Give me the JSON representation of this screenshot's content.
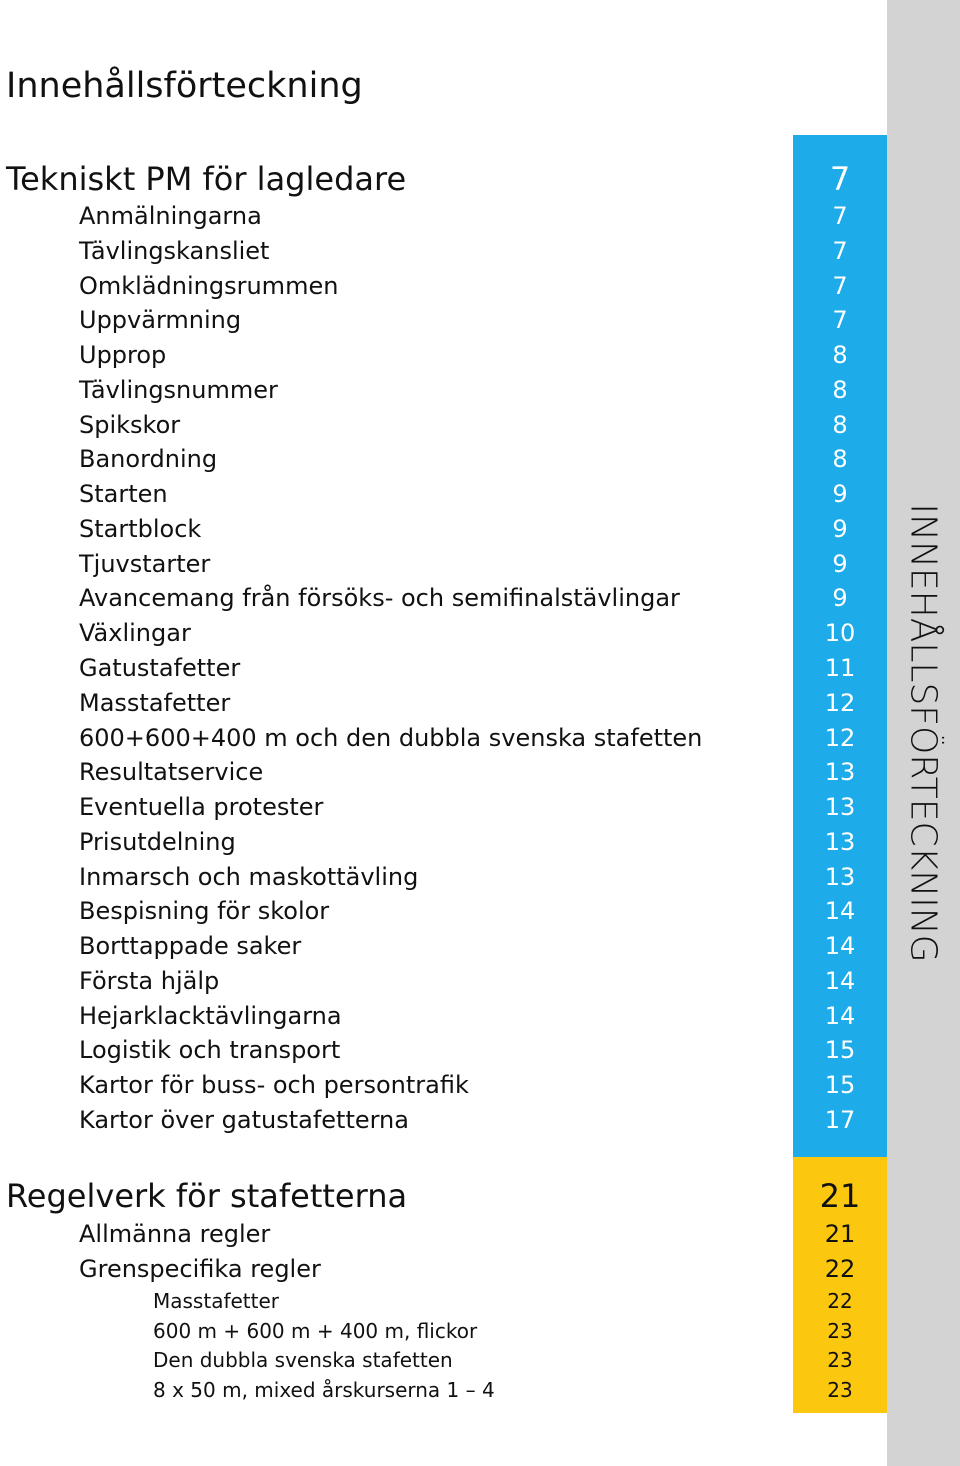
{
  "title": "Innehållsförteckning",
  "side_label": "INNEHÅLLSFÖRTECKNING",
  "colors": {
    "blue": "#1eabe9",
    "yellow": "#fbc70f",
    "strip": "#d3d3d3",
    "text": "#111111"
  },
  "sections": [
    {
      "title": "Tekniskt PM för lagledare",
      "page": "7",
      "items": [
        {
          "label": "Anmälningarna",
          "page": "7"
        },
        {
          "label": "Tävlingskansliet",
          "page": "7"
        },
        {
          "label": "Omklädningsrummen",
          "page": "7"
        },
        {
          "label": "Uppvärmning",
          "page": "7"
        },
        {
          "label": "Upprop",
          "page": "8"
        },
        {
          "label": "Tävlingsnummer",
          "page": "8"
        },
        {
          "label": "Spikskor",
          "page": "8"
        },
        {
          "label": "Banordning",
          "page": "8"
        },
        {
          "label": "Starten",
          "page": "9"
        },
        {
          "label": "Startblock",
          "page": "9"
        },
        {
          "label": "Tjuvstarter",
          "page": "9"
        },
        {
          "label": "Avancemang från försöks- och semifinalstävlingar",
          "page": "9"
        },
        {
          "label": "Växlingar",
          "page": "10"
        },
        {
          "label": "Gatustafetter",
          "page": "11"
        },
        {
          "label": "Masstafetter",
          "page": "12"
        },
        {
          "label": "600+600+400 m och den dubbla svenska stafetten",
          "page": "12"
        },
        {
          "label": "Resultatservice",
          "page": "13"
        },
        {
          "label": "Eventuella protester",
          "page": "13"
        },
        {
          "label": "Prisutdelning",
          "page": "13"
        },
        {
          "label": "Inmarsch och maskottävling",
          "page": "13"
        },
        {
          "label": "Bespisning för skolor",
          "page": "14"
        },
        {
          "label": "Borttappade saker",
          "page": "14"
        },
        {
          "label": "Första hjälp",
          "page": "14"
        },
        {
          "label": "Hejarklacktävlingarna",
          "page": "14"
        },
        {
          "label": "Logistik och transport",
          "page": "15"
        },
        {
          "label": "Kartor för buss- och persontrafik",
          "page": "15"
        },
        {
          "label": "Kartor över gatustafetterna",
          "page": "17"
        }
      ]
    },
    {
      "title": "Regelverk för stafetterna",
      "page": "21",
      "items": [
        {
          "label": "Allmänna regler",
          "page": "21"
        },
        {
          "label": "Grenspecifika regler",
          "page": "22"
        }
      ],
      "subitems": [
        {
          "label": "Masstafetter",
          "page": "22"
        },
        {
          "label": "600 m + 600 m + 400 m, flickor",
          "page": "23"
        },
        {
          "label": "Den dubbla svenska stafetten",
          "page": "23"
        },
        {
          "label": "8 x 50 m, mixed årskurserna 1 – 4",
          "page": "23"
        }
      ]
    }
  ]
}
